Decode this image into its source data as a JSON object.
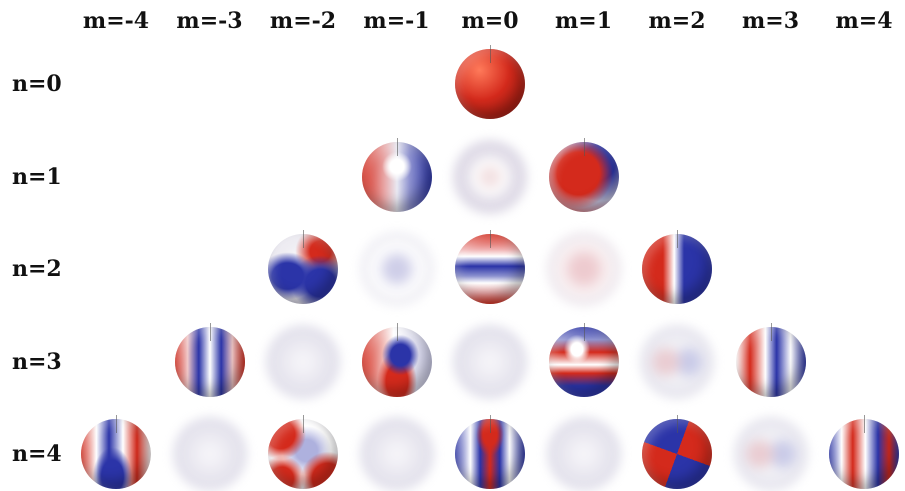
{
  "columns": [
    "m=-4",
    "m=-3",
    "m=-2",
    "m=-1",
    "m=0",
    "m=1",
    "m=2",
    "m=3",
    "m=4"
  ],
  "rows": [
    "n=0",
    "n=1",
    "n=2",
    "n=3",
    "n=4"
  ],
  "colors": {
    "positive": "#d42a1c",
    "negative": "#2b34a8",
    "neutral": "#e8e6ee",
    "blurred": "#b9b6cf"
  },
  "cells": [
    {
      "n": 0,
      "m": 0,
      "style": "sharp",
      "pattern": "uniform-red"
    },
    {
      "n": 1,
      "m": -1,
      "style": "sharp",
      "pattern": "red-left-blue-right"
    },
    {
      "n": 1,
      "m": 0,
      "style": "blur",
      "pattern": "soft-rings"
    },
    {
      "n": 1,
      "m": 1,
      "style": "sharp",
      "pattern": "red-front-blue-back"
    },
    {
      "n": 2,
      "m": -2,
      "style": "sharp",
      "pattern": "blue-lobes"
    },
    {
      "n": 2,
      "m": -1,
      "style": "blur",
      "pattern": "soft-blue"
    },
    {
      "n": 2,
      "m": 0,
      "style": "sharp",
      "pattern": "red-poles-blue-band"
    },
    {
      "n": 2,
      "m": 1,
      "style": "blur",
      "pattern": "soft-red"
    },
    {
      "n": 2,
      "m": 2,
      "style": "sharp",
      "pattern": "red-left-blue-right-split"
    },
    {
      "n": 3,
      "m": -3,
      "style": "sharp",
      "pattern": "red-blue-sectors"
    },
    {
      "n": 3,
      "m": -2,
      "style": "blur",
      "pattern": "soft-neutral"
    },
    {
      "n": 3,
      "m": -1,
      "style": "sharp",
      "pattern": "mixed-cap"
    },
    {
      "n": 3,
      "m": 0,
      "style": "blur",
      "pattern": "soft-neutral"
    },
    {
      "n": 3,
      "m": 1,
      "style": "sharp",
      "pattern": "blue-top-red-band"
    },
    {
      "n": 3,
      "m": 2,
      "style": "blur",
      "pattern": "soft-sectors"
    },
    {
      "n": 3,
      "m": 3,
      "style": "sharp",
      "pattern": "red-blue-sectors-alt"
    },
    {
      "n": 4,
      "m": -4,
      "style": "sharp",
      "pattern": "vertical-stripes"
    },
    {
      "n": 4,
      "m": -3,
      "style": "blur",
      "pattern": "soft-neutral"
    },
    {
      "n": 4,
      "m": -2,
      "style": "sharp",
      "pattern": "red-corners"
    },
    {
      "n": 4,
      "m": -1,
      "style": "blur",
      "pattern": "soft-neutral"
    },
    {
      "n": 4,
      "m": 0,
      "style": "sharp",
      "pattern": "red-blue-bands"
    },
    {
      "n": 4,
      "m": 1,
      "style": "blur",
      "pattern": "soft-neutral"
    },
    {
      "n": 4,
      "m": 2,
      "style": "sharp",
      "pattern": "checker"
    },
    {
      "n": 4,
      "m": 3,
      "style": "blur",
      "pattern": "soft-sectors"
    },
    {
      "n": 4,
      "m": 4,
      "style": "sharp",
      "pattern": "vertical-stripes-alt"
    }
  ]
}
